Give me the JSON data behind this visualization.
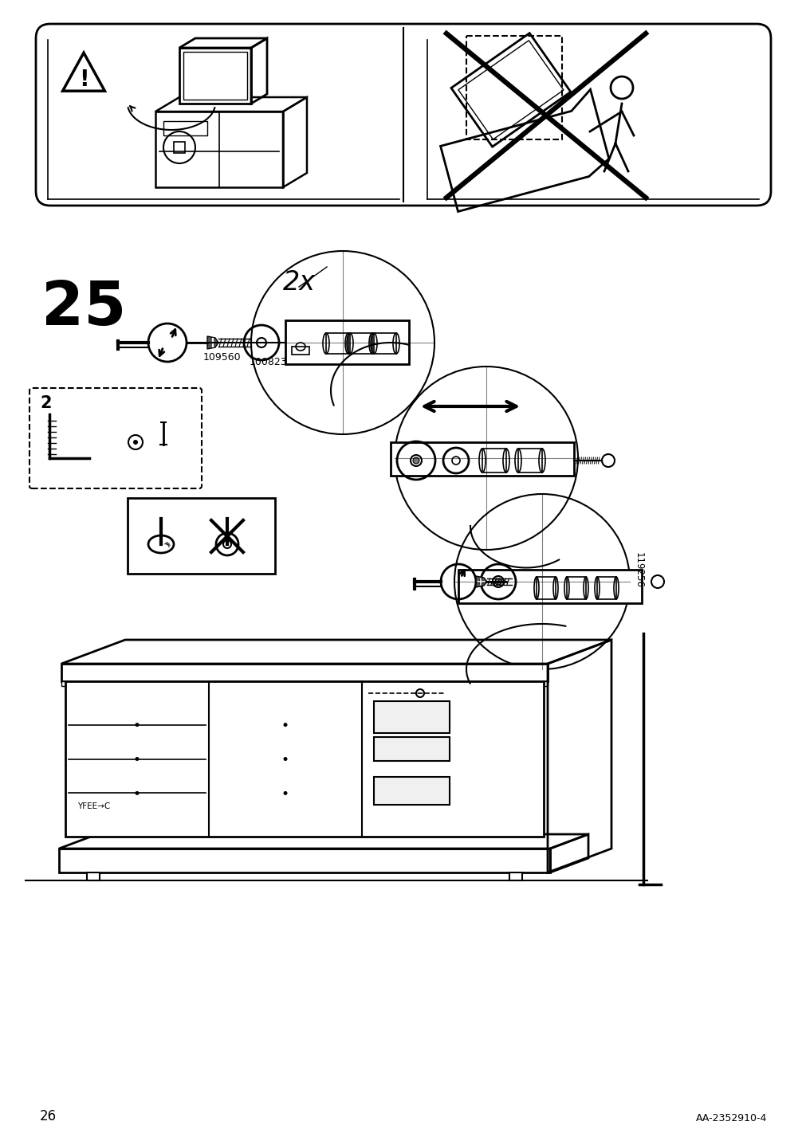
{
  "bg_color": "#ffffff",
  "page_number": "26",
  "doc_id": "AA-2352910-4",
  "step_number": "25",
  "part_codes": [
    "109560",
    "100823"
  ],
  "quantity_label": "2x",
  "line_color": "#000000"
}
